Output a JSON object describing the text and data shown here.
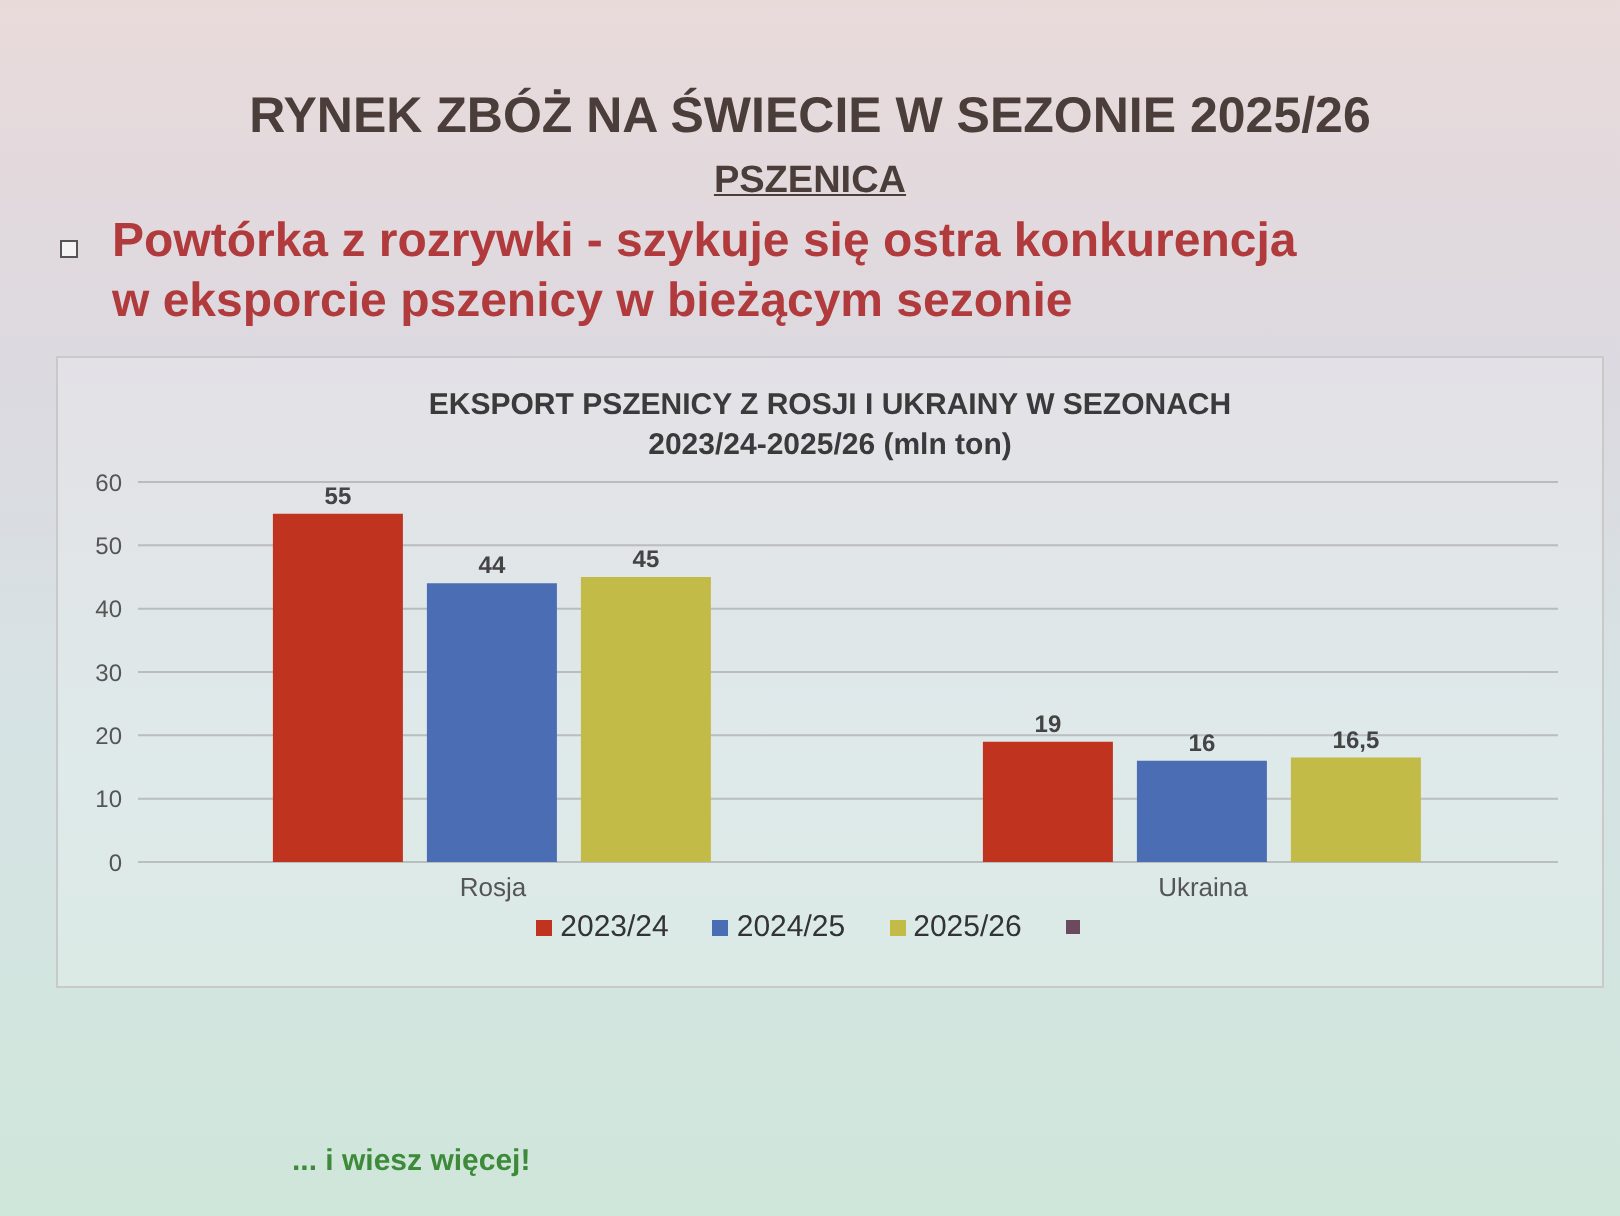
{
  "chart_data": {
    "type": "bar",
    "title": "EKSPORT PSZENICY Z ROSJI I UKRAINY W SEZONACH 2023/24-2025/26 (mln ton)",
    "categories": [
      "Rosja",
      "Ukraina"
    ],
    "series": [
      {
        "name": "2023/24",
        "color": "#c0341f",
        "values": [
          55,
          19
        ],
        "value_labels": [
          "55",
          "19"
        ]
      },
      {
        "name": "2024/25",
        "color": "#4a6db3",
        "values": [
          44,
          16
        ],
        "value_labels": [
          "44",
          "16"
        ]
      },
      {
        "name": "2025/26",
        "color": "#c2bb48",
        "values": [
          45,
          16.5
        ],
        "value_labels": [
          "45",
          "16,5"
        ]
      }
    ],
    "ylim": [
      0,
      60
    ],
    "yticks": [
      0,
      10,
      20,
      30,
      40,
      50,
      60
    ],
    "grid": "y",
    "legend": "bottom",
    "annotations": [
      "RYNEK ZBÓŻ NA ŚWIECIE W SEZONIE 2025/26",
      "PSZENICA",
      "Powtórka z rozrywki - szykuje się ostra konkurencja w eksporcie pszenicy w bieżącym sezonie",
      "... i wiesz więcej!"
    ]
  }
}
